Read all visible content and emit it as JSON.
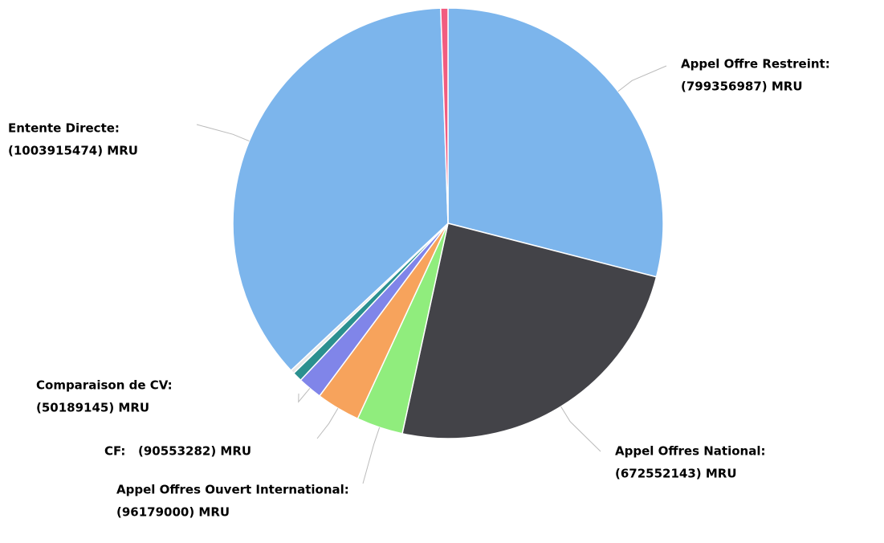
{
  "chart_data": {
    "type": "pie",
    "categories": [
      "Appel Offre Restreint:",
      "Appel Offres National:",
      "Appel Offres Ouvert International:",
      "CF:",
      "Comparaison de CV:",
      null,
      null,
      "Entente Directe:",
      null
    ],
    "values": [
      799356987,
      672552143,
      96179000,
      90553282,
      50189145,
      20000000,
      8000000,
      1003915474,
      15000000
    ],
    "value_labels": [
      "(799356987) MRU",
      "(672552143) MRU",
      "(96179000) MRU",
      "(90553282) MRU",
      "(50189145) MRU",
      null,
      null,
      "(1003915474) MRU",
      null
    ],
    "colors": [
      "#7cb5ec",
      "#434348",
      "#90ed7d",
      "#f7a35c",
      "#8085e9",
      "#2b908f",
      "#e8e8e8",
      "#7cb5ec",
      "#f15c80"
    ]
  }
}
